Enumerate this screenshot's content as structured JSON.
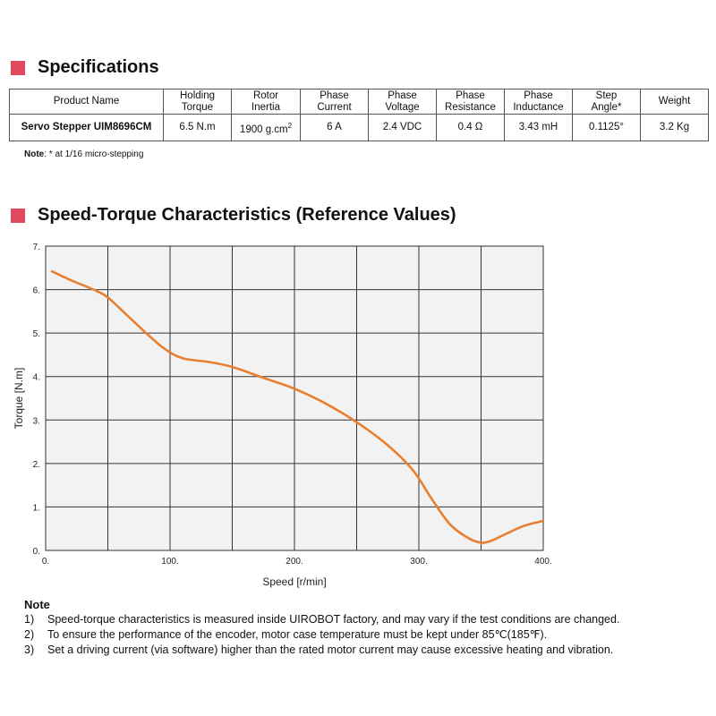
{
  "specifications": {
    "title": "Specifications",
    "headers": [
      [
        "Product Name"
      ],
      [
        "Holding",
        "Torque"
      ],
      [
        "Rotor",
        "Inertia"
      ],
      [
        "Phase",
        "Current"
      ],
      [
        "Phase",
        "Voltage"
      ],
      [
        "Phase",
        "Resistance"
      ],
      [
        "Phase",
        "Inductance"
      ],
      [
        "Step",
        "Angle*"
      ],
      [
        "Weight"
      ]
    ],
    "row": {
      "product_name": "Servo Stepper UIM8696CM",
      "holding_torque": "6.5 N.m",
      "rotor_inertia": "1900 g.cm",
      "rotor_inertia_sup": "2",
      "phase_current": "6 A",
      "phase_voltage": "2.4 VDC",
      "phase_resistance": "0.4 Ω",
      "phase_inductance": "3.43 mH",
      "step_angle": "0.1125°",
      "weight": "3.2 Kg"
    },
    "note_label": "Note",
    "note_text": ": * at 1/16 micro-stepping"
  },
  "chart_section": {
    "title": "Speed-Torque Characteristics (Reference Values)"
  },
  "chart_data": {
    "type": "line",
    "title": "Speed-Torque Characteristics (Reference Values)",
    "xlabel": "Speed [r/min]",
    "ylabel": "Torque [N.m]",
    "xlim": [
      0,
      400
    ],
    "ylim": [
      0,
      7
    ],
    "x_ticks": [
      0,
      50,
      100,
      150,
      200,
      250,
      300,
      350,
      400
    ],
    "y_ticks": [
      0,
      1,
      2,
      3,
      4,
      5,
      6,
      7
    ],
    "x_tick_labels": [
      "0.",
      "100.",
      "200.",
      "300.",
      "400."
    ],
    "x_tick_label_values": [
      0,
      100,
      200,
      300,
      400
    ],
    "y_tick_labels": [
      "0.",
      "1.",
      "2.",
      "3.",
      "4.",
      "5.",
      "6.",
      "7."
    ],
    "grid": true,
    "series": [
      {
        "name": "Torque",
        "color": "#e87f2f",
        "x": [
          5,
          20,
          40,
          50,
          65,
          80,
          95,
          110,
          130,
          150,
          175,
          200,
          225,
          250,
          275,
          295,
          310,
          325,
          340,
          350,
          358,
          370,
          385,
          400
        ],
        "y": [
          6.42,
          6.22,
          5.98,
          5.82,
          5.42,
          5.02,
          4.65,
          4.42,
          4.34,
          4.22,
          3.97,
          3.72,
          3.38,
          2.95,
          2.42,
          1.85,
          1.2,
          0.6,
          0.28,
          0.18,
          0.22,
          0.38,
          0.57,
          0.68
        ]
      }
    ]
  },
  "notes": {
    "heading": "Note",
    "items": [
      {
        "num": "1)",
        "text": "Speed-torque characteristics is measured inside UIROBOT factory, and may vary if the test conditions are changed."
      },
      {
        "num": "2)",
        "text": "To ensure the performance of the encoder, motor case temperature must be kept under 85℃(185℉)."
      },
      {
        "num": "3)",
        "text": "Set a driving current (via software) higher than the rated motor current may cause excessive heating and vibration."
      }
    ]
  },
  "colors": {
    "accent": "#e0495f",
    "curve": "#e87f2f",
    "plot_bg": "#f2f2f2"
  }
}
